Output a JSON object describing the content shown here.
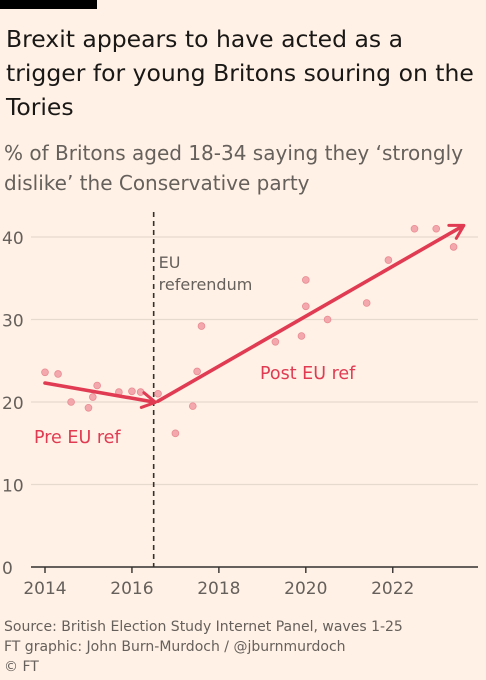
{
  "title": "Brexit appears to have acted as a trigger for young Britons souring on the Tories",
  "subtitle": "% of Britons aged 18-34 saying they ‘strongly dislike’ the Conservative party",
  "colors": {
    "background": "#fff1e5",
    "accent": "#e03b52",
    "points": "#f2a0a6",
    "grid": "#e6d9ce",
    "text": "#66605c"
  },
  "chart_data": {
    "type": "scatter",
    "xlim": [
      2014,
      2023.8
    ],
    "ylim": [
      0,
      42
    ],
    "x_ticks": [
      "2014",
      "2016",
      "2018",
      "2020",
      "2022"
    ],
    "y_ticks": [
      "0",
      "10",
      "20",
      "30",
      "40"
    ],
    "grid": "horizontal",
    "series": [
      {
        "points": [
          [
            2014.0,
            23.6
          ],
          [
            2014.3,
            23.4
          ],
          [
            2014.6,
            20.0
          ],
          [
            2015.0,
            19.3
          ],
          [
            2015.1,
            20.6
          ],
          [
            2015.2,
            22.0
          ],
          [
            2015.7,
            21.2
          ],
          [
            2016.0,
            21.3
          ],
          [
            2016.2,
            21.2
          ],
          [
            2016.6,
            21.0
          ],
          [
            2017.0,
            16.2
          ],
          [
            2017.4,
            19.5
          ],
          [
            2017.5,
            23.7
          ],
          [
            2017.6,
            29.2
          ],
          [
            2019.3,
            27.3
          ],
          [
            2019.9,
            28.0
          ],
          [
            2020.0,
            31.6
          ],
          [
            2020.0,
            34.8
          ],
          [
            2020.5,
            30.0
          ],
          [
            2021.4,
            32.0
          ],
          [
            2021.9,
            37.2
          ],
          [
            2022.5,
            41.0
          ],
          [
            2023.0,
            41.0
          ],
          [
            2023.4,
            38.8
          ]
        ]
      }
    ],
    "trend_arrows": [
      {
        "label": "Pre EU ref",
        "from": [
          2014.0,
          22.3
        ],
        "to": [
          2016.5,
          20.0
        ]
      },
      {
        "label": "Post EU ref",
        "from": [
          2016.6,
          20.1
        ],
        "to": [
          2023.6,
          41.3
        ]
      }
    ],
    "annotation": {
      "x": 2016.5,
      "lines": [
        "EU",
        "referendum"
      ]
    }
  },
  "footer": {
    "source": "Source: British Election Study Internet Panel, waves 1-25",
    "graphic": "FT graphic: John Burn-Murdoch / @jburnmurdoch",
    "copyright": "© FT"
  }
}
